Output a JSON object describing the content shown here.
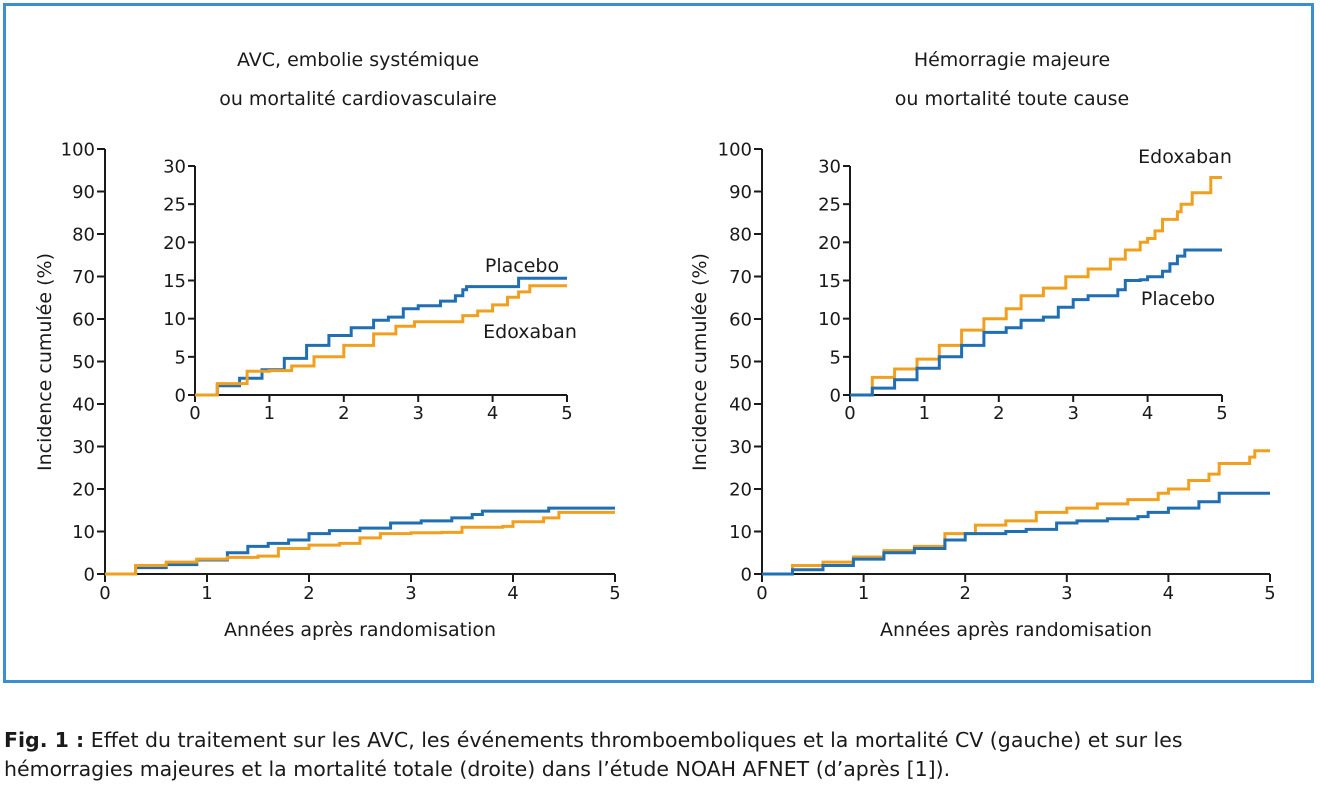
{
  "figure": {
    "caption_label": "Fig. 1 :",
    "caption_text": " Effet du traitement sur les AVC, les événements thromboemboliques et la mortalité CV (gauche) et sur les hémorragies majeures et la mortalité totale (droite) dans l’étude NOAH AFNET (d’après [1]).",
    "colors": {
      "frame": "#3a8fd0",
      "edoxaban": "#f0a01e",
      "placebo": "#1f6fb2"
    }
  },
  "chart_data": [
    {
      "type": "line",
      "step": true,
      "title": "AVC, embolie systémique\nou mortalité cardiovasculaire",
      "xlabel": "Années après randomisation",
      "ylabel": "Incidence cumulée (%)",
      "xlim": [
        0,
        5
      ],
      "ylim": [
        0,
        100
      ],
      "xticks": [
        "0",
        "1",
        "2",
        "3",
        "4",
        "5"
      ],
      "yticks": [
        "0",
        "10",
        "20",
        "30",
        "40",
        "50",
        "60",
        "70",
        "80",
        "90",
        "100"
      ],
      "series": [
        {
          "name": "Placebo",
          "color": "#1f6fb2",
          "x": [
            0,
            0.3,
            0.6,
            0.9,
            1.2,
            1.4,
            1.6,
            1.8,
            2.0,
            2.2,
            2.5,
            2.8,
            3.1,
            3.4,
            3.6,
            3.7,
            4.0,
            4.3,
            4.35,
            5.0
          ],
          "y": [
            0,
            1.5,
            2.2,
            3.3,
            5,
            6.5,
            7.2,
            8,
            9.5,
            10.2,
            10.8,
            12,
            12.5,
            13.2,
            14,
            14.8,
            14.8,
            14.8,
            15.5,
            15.5
          ]
        },
        {
          "name": "Edoxaban",
          "color": "#f0a01e",
          "x": [
            0,
            0.3,
            0.6,
            0.9,
            1.2,
            1.5,
            1.7,
            2.0,
            2.3,
            2.5,
            2.7,
            3.0,
            3.3,
            3.5,
            3.9,
            4.0,
            4.3,
            4.45,
            5.0
          ],
          "y": [
            0,
            2,
            2.8,
            3.5,
            3.9,
            4.2,
            6,
            6.8,
            7.2,
            8.5,
            9.5,
            9.7,
            9.8,
            11,
            11.2,
            12.3,
            13.2,
            14.5,
            14.5
          ]
        }
      ],
      "inset": {
        "xlim": [
          0,
          5
        ],
        "ylim": [
          0,
          30
        ],
        "xticks": [
          "0",
          "1",
          "2",
          "3",
          "4",
          "5"
        ],
        "yticks": [
          "0",
          "5",
          "10",
          "15",
          "20",
          "25",
          "30"
        ],
        "labels": [
          {
            "text": "Placebo",
            "series": "Placebo"
          },
          {
            "text": "Edoxaban",
            "series": "Edoxaban"
          }
        ],
        "series": [
          {
            "name": "Placebo",
            "color": "#1f6fb2",
            "x": [
              0,
              0.3,
              0.6,
              0.9,
              1.2,
              1.5,
              1.8,
              2.1,
              2.4,
              2.6,
              2.8,
              3.0,
              3.3,
              3.5,
              3.6,
              3.65,
              3.8,
              4.0,
              4.3,
              4.35,
              5.0
            ],
            "y": [
              0,
              1.2,
              2.2,
              3.3,
              4.8,
              6.5,
              7.8,
              8.8,
              9.8,
              10.2,
              11.3,
              11.7,
              12.3,
              13,
              13.8,
              14.2,
              14.2,
              14.2,
              14.2,
              15.3,
              15.3
            ]
          },
          {
            "name": "Edoxaban",
            "color": "#f0a01e",
            "x": [
              0,
              0.3,
              0.7,
              1.0,
              1.3,
              1.6,
              2.0,
              2.4,
              2.7,
              2.95,
              3.5,
              3.6,
              3.8,
              4.0,
              4.2,
              4.35,
              4.5,
              5.0
            ],
            "y": [
              0,
              1.5,
              3.1,
              3.2,
              3.8,
              5,
              6.5,
              8,
              9,
              9.6,
              9.6,
              10.4,
              11,
              11.8,
              12.8,
              13.5,
              14.3,
              14.3
            ]
          }
        ]
      }
    },
    {
      "type": "line",
      "step": true,
      "title": "Hémorragie majeure\nou mortalité toute cause",
      "xlabel": "Années après randomisation",
      "ylabel": "Incidence cumulée (%)",
      "xlim": [
        0,
        5
      ],
      "ylim": [
        0,
        100
      ],
      "xticks": [
        "0",
        "1",
        "2",
        "3",
        "4",
        "5"
      ],
      "yticks": [
        "0",
        "10",
        "20",
        "30",
        "40",
        "50",
        "60",
        "70",
        "80",
        "90",
        "100"
      ],
      "series": [
        {
          "name": "Edoxaban",
          "color": "#f0a01e",
          "x": [
            0,
            0.3,
            0.6,
            0.9,
            1.2,
            1.5,
            1.8,
            2.1,
            2.4,
            2.7,
            3.0,
            3.3,
            3.6,
            3.9,
            4.0,
            4.2,
            4.4,
            4.5,
            4.8,
            4.85,
            5.0
          ],
          "y": [
            0,
            2,
            2.8,
            4,
            5.5,
            6.5,
            9.5,
            11.5,
            12.5,
            14.5,
            15.5,
            16.5,
            17.5,
            19,
            20,
            22,
            23.5,
            26,
            27.5,
            29,
            29
          ]
        },
        {
          "name": "Placebo",
          "color": "#1f6fb2",
          "x": [
            0,
            0.3,
            0.6,
            0.9,
            1.2,
            1.5,
            1.8,
            2.0,
            2.4,
            2.6,
            2.9,
            3.1,
            3.4,
            3.7,
            3.8,
            4.0,
            4.3,
            4.5,
            5.0
          ],
          "y": [
            0,
            1,
            2,
            3.5,
            5,
            6,
            8,
            9.5,
            10,
            10.5,
            12,
            12.5,
            13,
            13.5,
            14.5,
            15.5,
            17,
            19,
            19
          ]
        }
      ],
      "inset": {
        "xlim": [
          0,
          5
        ],
        "ylim": [
          0,
          30
        ],
        "xticks": [
          "0",
          "1",
          "2",
          "3",
          "4",
          "5"
        ],
        "yticks": [
          "0",
          "5",
          "10",
          "15",
          "20",
          "25",
          "30"
        ],
        "labels": [
          {
            "text": "Edoxaban",
            "series": "Edoxaban"
          },
          {
            "text": "Placebo",
            "series": "Placebo"
          }
        ],
        "series": [
          {
            "name": "Edoxaban",
            "color": "#f0a01e",
            "x": [
              0,
              0.3,
              0.6,
              0.9,
              1.2,
              1.5,
              1.8,
              2.1,
              2.3,
              2.6,
              2.9,
              3.2,
              3.5,
              3.7,
              3.9,
              4.0,
              4.1,
              4.2,
              4.4,
              4.45,
              4.6,
              4.8,
              4.85,
              5.0
            ],
            "y": [
              0,
              2.3,
              3.4,
              4.7,
              6.5,
              8.5,
              10,
              11.3,
              13,
              14,
              15.5,
              16.5,
              17.8,
              19,
              20,
              20.5,
              21.5,
              23,
              24,
              25,
              26.5,
              26.5,
              28.5,
              28.5
            ]
          },
          {
            "name": "Placebo",
            "color": "#1f6fb2",
            "x": [
              0,
              0.3,
              0.6,
              0.9,
              1.2,
              1.5,
              1.8,
              2.1,
              2.3,
              2.6,
              2.8,
              3.0,
              3.2,
              3.5,
              3.6,
              3.7,
              3.9,
              4.0,
              4.2,
              4.3,
              4.4,
              4.5,
              5.0
            ],
            "y": [
              0,
              0.9,
              2,
              3.5,
              5,
              6.5,
              8.2,
              8.8,
              9.8,
              10.2,
              11.5,
              12.5,
              13,
              13,
              13.8,
              15,
              15.1,
              15.5,
              16.2,
              17.2,
              18.2,
              19,
              19
            ]
          }
        ]
      }
    }
  ]
}
